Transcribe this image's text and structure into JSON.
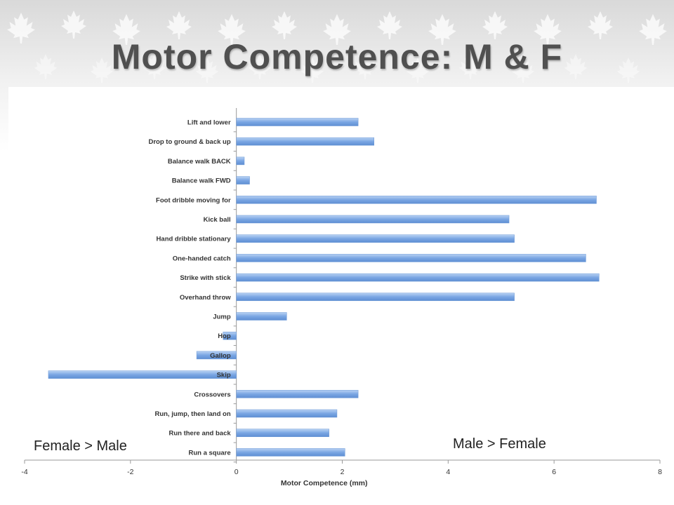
{
  "slide": {
    "title": "Motor Competence: M & F",
    "note_left": "Female > Male",
    "note_right": "Male > Female"
  },
  "colors": {
    "bar": "#7aa6e3",
    "bar_highlight": "#b9d2f3",
    "title_text": "#505050",
    "axis": "#9a9a9a"
  },
  "chart_data": {
    "type": "bar",
    "orientation": "horizontal",
    "categories": [
      "Lift and lower",
      "Drop to ground & back up",
      "Balance walk BACK",
      "Balance walk FWD",
      "Foot dribble moving for",
      "Kick ball",
      "Hand dribble stationary",
      "One-handed catch",
      "Strike with stick",
      "Overhand throw",
      "Jump",
      "Hop",
      "Gallop",
      "Skip",
      "Crossovers",
      "Run, jump, then land on",
      "Run there and back",
      "Run a square"
    ],
    "values": [
      2.3,
      2.6,
      0.15,
      0.25,
      6.8,
      5.15,
      5.25,
      6.6,
      6.85,
      5.25,
      0.95,
      -0.25,
      -0.75,
      -3.55,
      2.3,
      1.9,
      1.75,
      2.05
    ],
    "xlabel": "Motor Competence (mm)",
    "ylabel": "",
    "title": "",
    "xlim": [
      -4,
      8
    ],
    "xticks": [
      "-4",
      "-2",
      "0",
      "2",
      "4",
      "6",
      "8"
    ],
    "grid": false,
    "legend": "none"
  }
}
